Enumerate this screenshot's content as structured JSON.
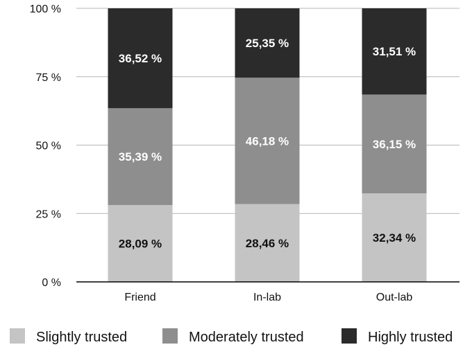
{
  "chart_data": {
    "type": "bar",
    "stacked": true,
    "categories": [
      "Friend",
      "In-lab",
      "Out-lab"
    ],
    "series": [
      {
        "name": "Slightly trusted",
        "values": [
          28.09,
          28.46,
          32.34
        ],
        "labels": [
          "28,09 %",
          "28,46 %",
          "32,34 %"
        ],
        "color": "#c4c4c4",
        "label_color": "#111111"
      },
      {
        "name": "Moderately trusted",
        "values": [
          35.39,
          46.18,
          36.15
        ],
        "labels": [
          "35,39 %",
          "46,18 %",
          "36,15 %"
        ],
        "color": "#8e8e8e",
        "label_color": "#ffffff"
      },
      {
        "name": "Highly trusted",
        "values": [
          36.52,
          25.35,
          31.51
        ],
        "labels": [
          "36,52 %",
          "25,35 %",
          "31,51 %"
        ],
        "color": "#2b2b2b",
        "label_color": "#ffffff"
      }
    ],
    "ylim": [
      0,
      100
    ],
    "yticks": [
      0,
      25,
      50,
      75,
      100
    ],
    "ytick_labels": [
      "0 %",
      "25 %",
      "50 %",
      "75 %",
      "100 %"
    ],
    "grid": true,
    "legend_position": "bottom"
  }
}
